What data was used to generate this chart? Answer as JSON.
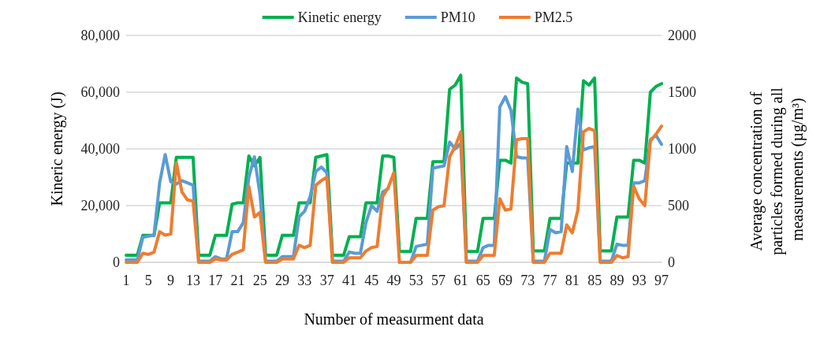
{
  "chart_data": {
    "type": "line",
    "xlabel": "Number of measurment data",
    "ylabel": "Kineric energy (J)",
    "y2label": "Average concentration of particles formed during all measurements (µg/m³)",
    "categories": [
      "1",
      null,
      null,
      null,
      "5",
      null,
      null,
      null,
      "9",
      null,
      null,
      null,
      "13",
      null,
      null,
      null,
      "17",
      null,
      null,
      null,
      "21",
      null,
      null,
      null,
      "25",
      null,
      null,
      null,
      "29",
      null,
      null,
      null,
      "33",
      null,
      null,
      null,
      "37",
      null,
      null,
      null,
      "41",
      null,
      null,
      null,
      "45",
      null,
      null,
      null,
      "49",
      null,
      null,
      null,
      "53",
      null,
      null,
      null,
      "57",
      null,
      null,
      null,
      "61",
      null,
      null,
      null,
      "65",
      null,
      null,
      null,
      "69",
      null,
      null,
      null,
      "73",
      null,
      null,
      null,
      "77",
      null,
      null,
      null,
      "81",
      null,
      null,
      null,
      "85",
      null,
      null,
      null,
      "89",
      null,
      null,
      null,
      "93",
      null,
      null,
      null,
      "97"
    ],
    "series": [
      {
        "name": "Kinetic energy",
        "color": "#00b050",
        "values": [
          2500,
          2500,
          2500,
          9500,
          9500,
          9500,
          21000,
          21000,
          21000,
          37000,
          37000,
          37000,
          37000,
          2500,
          2500,
          2500,
          9500,
          9500,
          9500,
          20500,
          21000,
          21000,
          37500,
          34000,
          37000,
          2500,
          2500,
          2500,
          9500,
          9500,
          9500,
          21000,
          21000,
          21000,
          37000,
          37500,
          38000,
          2500,
          2500,
          2500,
          9000,
          9000,
          9000,
          21000,
          21000,
          21000,
          37500,
          37500,
          37000,
          3800,
          3800,
          3800,
          15500,
          15500,
          15500,
          35500,
          35500,
          35500,
          61000,
          62500,
          66000,
          3800,
          3800,
          3800,
          15500,
          15500,
          15500,
          36000,
          36000,
          35000,
          65000,
          63500,
          63000,
          4000,
          4000,
          4000,
          15500,
          15500,
          15500,
          35000,
          35000,
          35000,
          64000,
          62500,
          65000,
          4000,
          4000,
          4000,
          16000,
          16000,
          16000,
          36000,
          36000,
          35000,
          60000,
          62000,
          63000
        ]
      },
      {
        "name": "PM10",
        "color": "#5b9bd5",
        "axis": "y2",
        "values": [
          20,
          20,
          20,
          220,
          230,
          240,
          700,
          950,
          710,
          690,
          720,
          700,
          680,
          10,
          10,
          10,
          50,
          30,
          30,
          270,
          270,
          350,
          750,
          930,
          600,
          10,
          10,
          10,
          50,
          50,
          50,
          400,
          450,
          580,
          800,
          840,
          790,
          10,
          10,
          10,
          90,
          80,
          80,
          350,
          500,
          450,
          620,
          650,
          null,
          0,
          0,
          0,
          140,
          150,
          160,
          830,
          840,
          850,
          1060,
          1000,
          1050,
          10,
          10,
          10,
          130,
          150,
          150,
          1370,
          1460,
          1340,
          930,
          920,
          920,
          10,
          10,
          10,
          290,
          260,
          270,
          1020,
          800,
          1350,
          990,
          1010,
          1020,
          10,
          10,
          10,
          160,
          150,
          150,
          700,
          700,
          720,
          1080,
          1120,
          1040
        ]
      },
      {
        "name": "PM2.5",
        "color": "#ed7d31",
        "axis": "y2",
        "values": [
          0,
          0,
          0,
          80,
          70,
          90,
          270,
          240,
          250,
          880,
          620,
          550,
          540,
          0,
          0,
          0,
          30,
          20,
          20,
          70,
          90,
          110,
          670,
          400,
          440,
          0,
          0,
          0,
          30,
          30,
          30,
          150,
          130,
          150,
          680,
          720,
          750,
          0,
          0,
          0,
          40,
          40,
          40,
          100,
          130,
          140,
          580,
          660,
          790,
          0,
          0,
          0,
          60,
          60,
          60,
          460,
          490,
          500,
          930,
          1020,
          1150,
          0,
          0,
          0,
          60,
          60,
          60,
          560,
          460,
          470,
          1080,
          1090,
          1090,
          0,
          0,
          0,
          80,
          80,
          80,
          330,
          260,
          460,
          1150,
          1180,
          1160,
          0,
          0,
          0,
          60,
          40,
          50,
          670,
          560,
          500,
          1070,
          1130,
          1200
        ]
      }
    ],
    "ylim": [
      0,
      80000
    ],
    "yticks": [
      {
        "value": 0,
        "label": "0"
      },
      {
        "value": 20000,
        "label": "20,000"
      },
      {
        "value": 40000,
        "label": "40,000"
      },
      {
        "value": 60000,
        "label": "60,000"
      },
      {
        "value": 80000,
        "label": "80,000"
      }
    ],
    "y2lim": [
      0,
      2000
    ],
    "y2ticks": [
      0,
      500,
      1000,
      1500,
      2000
    ],
    "grid": "y",
    "legend": "top",
    "marker": "none",
    "line_style": "solid"
  }
}
